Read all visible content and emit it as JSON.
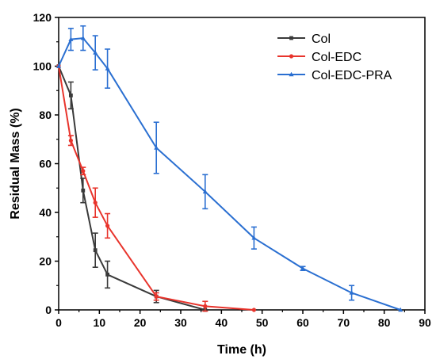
{
  "chart_data": {
    "type": "line",
    "xlabel": "Time (h)",
    "ylabel": "Residual Mass (%)",
    "xlim": [
      0,
      90
    ],
    "ylim": [
      0,
      120
    ],
    "xticks": [
      0,
      10,
      20,
      30,
      40,
      50,
      60,
      70,
      80,
      90
    ],
    "yticks": [
      0,
      20,
      40,
      60,
      80,
      100,
      120
    ],
    "grid": false,
    "legend_position": "top-right",
    "series": [
      {
        "name": "Col",
        "color": "#3a3a3a",
        "marker": "square",
        "x": [
          0,
          3,
          6,
          9,
          12,
          24,
          36
        ],
        "y": [
          100,
          88,
          49,
          24.5,
          14.5,
          5.5,
          0
        ],
        "err": [
          0,
          5.5,
          5,
          7,
          5.5,
          2.5,
          0
        ]
      },
      {
        "name": "Col-EDC",
        "color": "#e8342c",
        "marker": "circle",
        "x": [
          0,
          3,
          6,
          9,
          12,
          24,
          36,
          48
        ],
        "y": [
          100,
          69.5,
          57,
          44,
          34.5,
          5.5,
          1.5,
          0
        ],
        "err": [
          0,
          2,
          1.5,
          6,
          5,
          1.5,
          2,
          0
        ]
      },
      {
        "name": "Col-EDC-PRA",
        "color": "#2a6fd1",
        "marker": "triangle",
        "x": [
          0,
          3,
          6,
          9,
          12,
          24,
          36,
          48,
          60,
          72,
          84
        ],
        "y": [
          100,
          111,
          111.5,
          105.5,
          99,
          66.5,
          48.5,
          29.5,
          17,
          7,
          0
        ],
        "err": [
          0,
          4.5,
          5,
          7,
          8,
          10.5,
          7,
          4.5,
          0.8,
          3,
          0
        ]
      }
    ]
  }
}
